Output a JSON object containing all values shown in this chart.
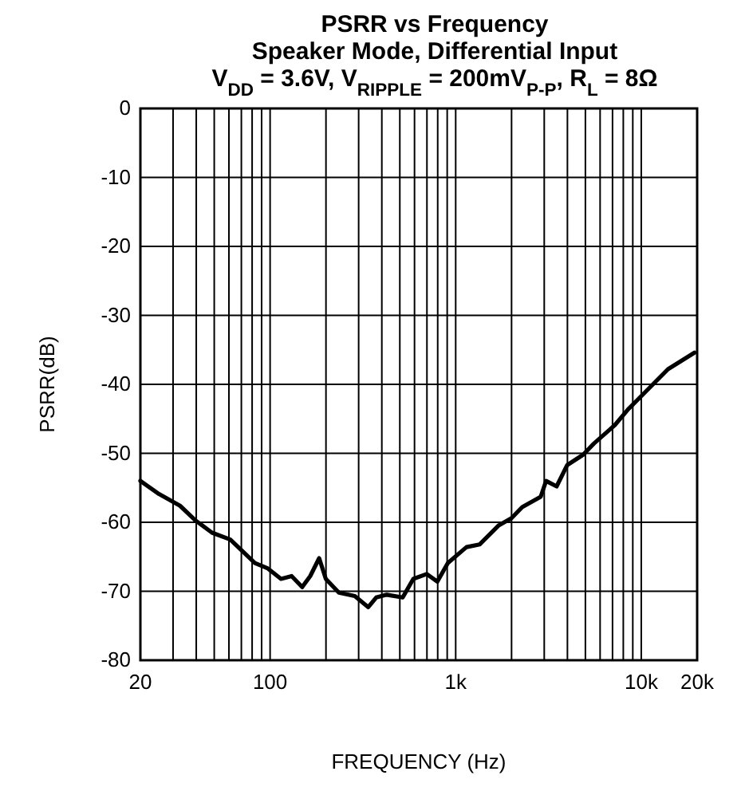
{
  "chart_data": {
    "type": "line",
    "title": "PSRR vs Frequency",
    "subtitle": "Speaker Mode, Differential Input\nV$_{DD}$ = 3.6V, V$_{RIPPLE}$ = 200mV$_{P-P}$, R$_{L}$ = 8Ω",
    "xlabel": "FREQUENCY (Hz)",
    "ylabel": "PSRR(dB)",
    "log": "x",
    "grid": true,
    "xlim": [
      20,
      20000
    ],
    "ylim": [
      -80,
      0
    ],
    "xticks": [
      20,
      {
        "value": 30,
        "label": null
      },
      {
        "value": 40,
        "label": null
      },
      {
        "value": 50,
        "label": null
      },
      {
        "value": 60,
        "label": null
      },
      {
        "value": 70,
        "label": null
      },
      {
        "value": 80,
        "label": null
      },
      {
        "value": 90,
        "label": null
      },
      100,
      {
        "value": 200,
        "label": null
      },
      {
        "value": 300,
        "label": null
      },
      {
        "value": 400,
        "label": null
      },
      {
        "value": 500,
        "label": null
      },
      {
        "value": 600,
        "label": null
      },
      {
        "value": 700,
        "label": null
      },
      {
        "value": 800,
        "label": null
      },
      {
        "value": 900,
        "label": null
      },
      {
        "value": 1000,
        "label": "1k"
      },
      {
        "value": 2000,
        "label": null
      },
      {
        "value": 3000,
        "label": null
      },
      {
        "value": 4000,
        "label": null
      },
      {
        "value": 5000,
        "label": null
      },
      {
        "value": 6000,
        "label": null
      },
      {
        "value": 7000,
        "label": null
      },
      {
        "value": 8000,
        "label": null
      },
      {
        "value": 9000,
        "label": null
      },
      {
        "value": 10000,
        "label": "10k"
      },
      {
        "value": 20000,
        "label": "20k"
      }
    ],
    "yticks": [
      -80,
      -70,
      -60,
      -50,
      -40,
      -30,
      -20,
      -10,
      0
    ],
    "x": [
      20,
      25.2,
      32.7,
      39.9,
      48.6,
      61,
      69.8,
      82.8,
      97.3,
      114.5,
      130.6,
      148.9,
      164.5,
      183.8,
      199.6,
      234.8,
      286,
      338,
      373,
      425,
      518,
      591,
      698,
      796,
      908,
      1143,
      1348,
      1697,
      2000,
      2281,
      2871,
      3069,
      3499,
      3990,
      4862,
      5547,
      7209,
      8508,
      10710,
      13930,
      19350
    ],
    "series": [
      {
        "color": "#000000",
        "values": [
          -54,
          -55.9,
          -57.6,
          -59.8,
          -61.5,
          -62.5,
          -64,
          -65.9,
          -66.7,
          -68.2,
          -67.8,
          -69.4,
          -67.8,
          -65.2,
          -68.2,
          -70.2,
          -70.7,
          -72.3,
          -70.9,
          -70.5,
          -70.9,
          -68.2,
          -67.5,
          -68.6,
          -65.9,
          -63.6,
          -63.2,
          -60.5,
          -59.4,
          -57.8,
          -56.3,
          -54,
          -54.8,
          -51.7,
          -50.2,
          -48.6,
          -45.9,
          -43.6,
          -40.9,
          -37.8,
          -35.4
        ]
      }
    ]
  }
}
